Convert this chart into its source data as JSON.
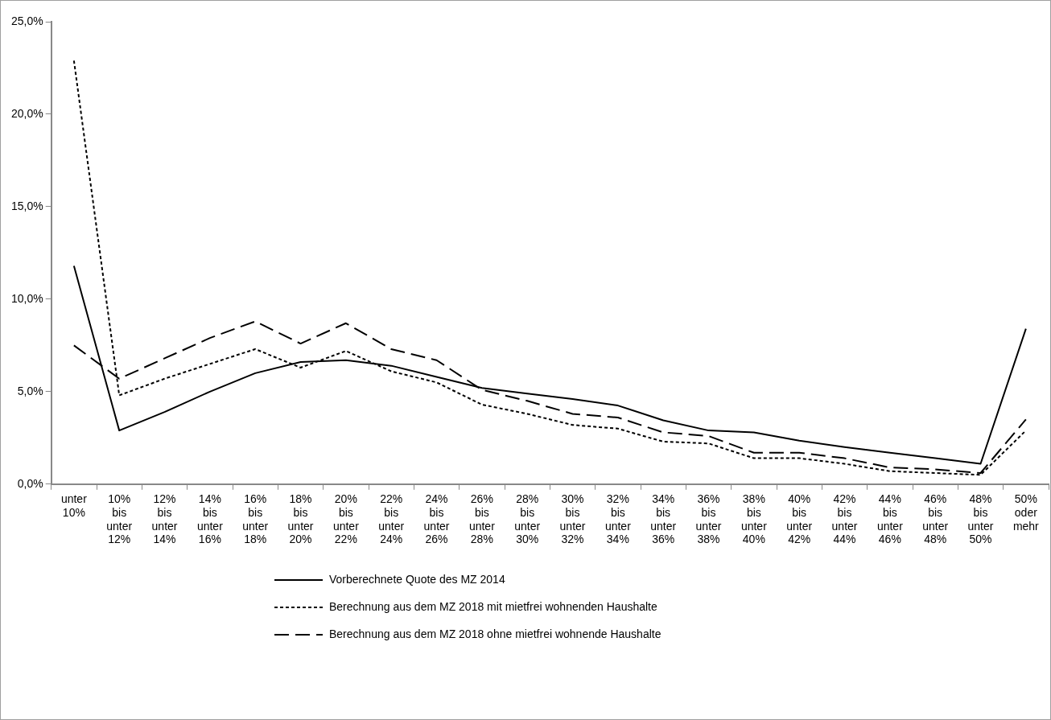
{
  "chart_data": {
    "type": "line",
    "categories": [
      "unter 10%",
      "10% bis unter 12%",
      "12% bis unter 14%",
      "14% bis unter 16%",
      "16% bis unter 18%",
      "18% bis unter 20%",
      "20% bis unter 22%",
      "22% bis unter 24%",
      "24% bis unter 26%",
      "26% bis unter 28%",
      "28% bis unter 30%",
      "30% bis unter 32%",
      "32% bis unter 34%",
      "34% bis unter 36%",
      "36% bis unter 38%",
      "38% bis unter 40%",
      "40% bis unter 42%",
      "42% bis unter 44%",
      "44% bis unter 46%",
      "46% bis unter 48%",
      "48% bis unter 50%",
      "50% oder mehr"
    ],
    "series": [
      {
        "name": "Vorberechnete Quote des MZ 2014",
        "color": "#000000",
        "line_style": "solid",
        "values": [
          11.8,
          2.9,
          3.9,
          5.0,
          6.0,
          6.6,
          6.7,
          6.4,
          5.8,
          5.2,
          4.9,
          4.6,
          4.25,
          3.45,
          2.9,
          2.8,
          2.35,
          2.0,
          1.7,
          1.4,
          1.1,
          8.4
        ]
      },
      {
        "name": "Berechnung aus dem MZ 2018 mit mietfrei wohnenden Haushalte",
        "color": "#000000",
        "line_style": "dotted",
        "values": [
          22.9,
          4.8,
          5.7,
          6.5,
          7.3,
          6.3,
          7.2,
          6.1,
          5.5,
          4.3,
          3.8,
          3.2,
          3.0,
          2.3,
          2.2,
          1.4,
          1.4,
          1.1,
          0.7,
          0.6,
          0.5,
          2.9
        ]
      },
      {
        "name": "Berechnung aus dem MZ 2018 ohne mietfrei wohnende Haushalte",
        "color": "#000000",
        "line_style": "dashed",
        "values": [
          7.5,
          5.7,
          6.8,
          7.9,
          8.8,
          7.6,
          8.7,
          7.3,
          6.7,
          5.1,
          4.5,
          3.8,
          3.6,
          2.8,
          2.6,
          1.7,
          1.7,
          1.4,
          0.9,
          0.8,
          0.6,
          3.5
        ]
      }
    ],
    "ylim": [
      0,
      25
    ],
    "yticks": [
      {
        "value": 0,
        "label": "0,0%"
      },
      {
        "value": 5,
        "label": "5,0%"
      },
      {
        "value": 10,
        "label": "10,0%"
      },
      {
        "value": 15,
        "label": "15,0%"
      },
      {
        "value": 20,
        "label": "20,0%"
      },
      {
        "value": 25,
        "label": "25,0%"
      }
    ],
    "grid": false,
    "legend": "bottom",
    "marker": "none"
  }
}
